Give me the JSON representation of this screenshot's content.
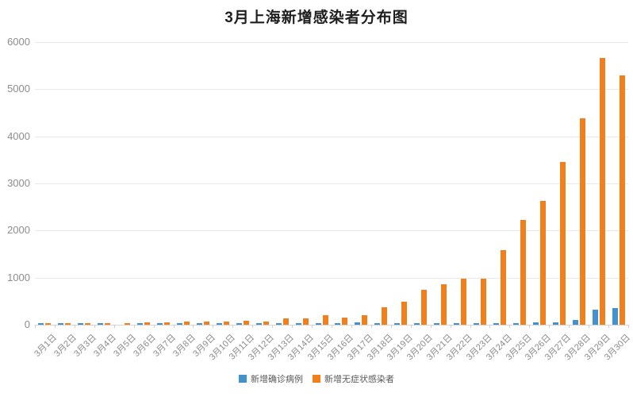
{
  "chart_data": {
    "type": "bar",
    "title": "3月上海新增感染者分布图",
    "categories": [
      "3月1日",
      "3月2日",
      "3月3日",
      "3月4日",
      "3月5日",
      "3月6日",
      "3月7日",
      "3月8日",
      "3月9日",
      "3月10日",
      "3月11日",
      "3月12日",
      "3月13日",
      "3月14日",
      "3月15日",
      "3月16日",
      "3月17日",
      "3月18日",
      "3月19日",
      "3月20日",
      "3月21日",
      "3月22日",
      "3月23日",
      "3月24日",
      "3月25日",
      "3月26日",
      "3月27日",
      "3月28日",
      "3月29日",
      "3月30日"
    ],
    "series": [
      {
        "name": "新增确诊病例",
        "color": "#4292CF",
        "values": [
          1,
          3,
          2,
          3,
          0,
          3,
          4,
          3,
          4,
          11,
          5,
          1,
          41,
          9,
          5,
          8,
          57,
          8,
          17,
          24,
          31,
          4,
          4,
          29,
          38,
          45,
          50,
          96,
          326,
          355
        ]
      },
      {
        "name": "新增无症状感染者",
        "color": "#F0801C",
        "values": [
          1,
          5,
          14,
          16,
          28,
          45,
          51,
          62,
          76,
          64,
          78,
          64,
          128,
          130,
          197,
          150,
          203,
          366,
          492,
          734,
          865,
          977,
          979,
          1580,
          2231,
          2631,
          3450,
          4381,
          5656,
          5298
        ]
      }
    ],
    "xlabel": "",
    "ylabel": "",
    "ylim": [
      0,
      6000
    ],
    "y_ticks": [
      0,
      1000,
      2000,
      3000,
      4000,
      5000,
      6000
    ],
    "grid": true,
    "legend_position": "bottom",
    "colors": {
      "title_text": "#1f1f1f",
      "axis_text": "#8a8a8a",
      "gridline": "#e8e8e8",
      "legend_text": "#595959",
      "background": "#ffffff"
    }
  }
}
